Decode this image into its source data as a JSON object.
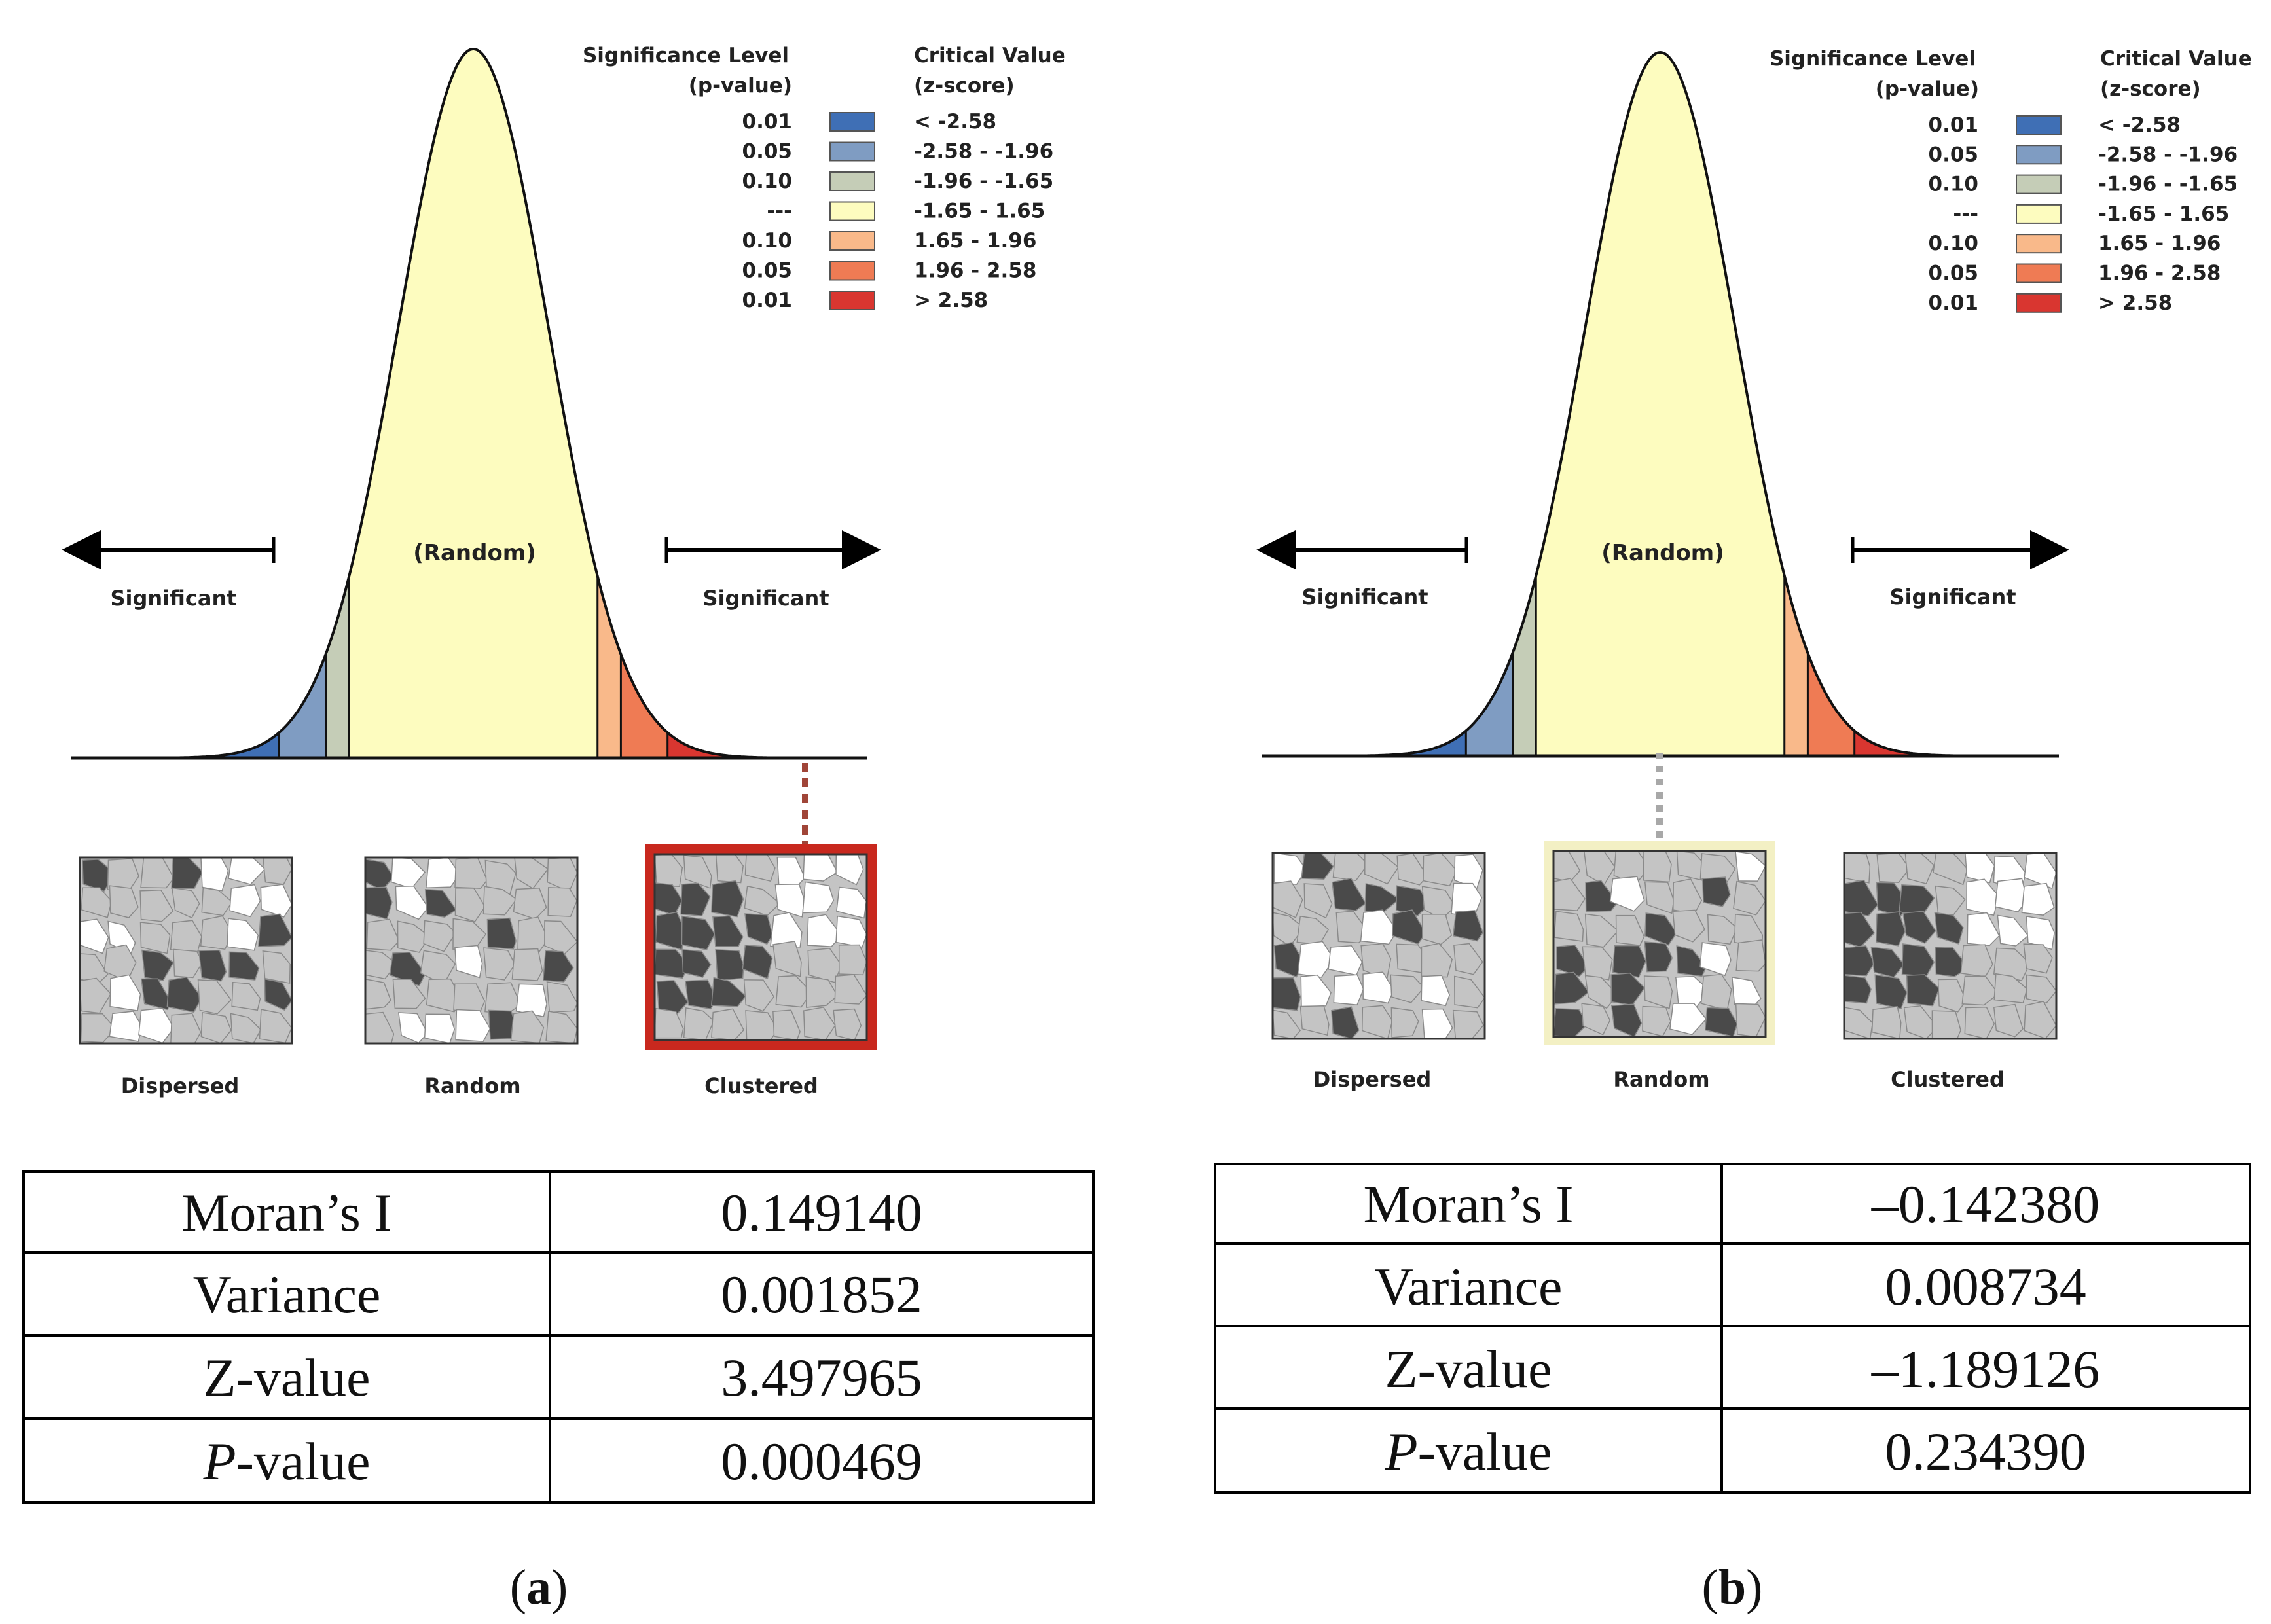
{
  "panels": [
    {
      "id": "a",
      "caption": "a",
      "legend": {
        "sig_header": [
          "Significance Level",
          "(p-value)"
        ],
        "crit_header": [
          "Critical Value",
          "(z-score)"
        ],
        "rows": [
          {
            "p": "0.01",
            "z": "< -2.58",
            "color": "#3f6fb5"
          },
          {
            "p": "0.05",
            "z": "-2.58 - -1.96",
            "color": "#7f9cc2"
          },
          {
            "p": "0.10",
            "z": "-1.96 - -1.65",
            "color": "#c5cdb7"
          },
          {
            "p": "---",
            "z": "-1.65 - 1.65",
            "color": "#fdfcbf"
          },
          {
            "p": "0.10",
            "z": "1.65 - 1.96",
            "color": "#f9b98a"
          },
          {
            "p": "0.05",
            "z": "1.96 - 2.58",
            "color": "#ef7b54"
          },
          {
            "p": "0.01",
            "z": "> 2.58",
            "color": "#d93630"
          }
        ]
      },
      "labels": {
        "random": "(Random)",
        "sig_left": "Significant",
        "sig_right": "Significant"
      },
      "selected": "Clustered",
      "maps": [
        "Dispersed",
        "Random",
        "Clustered"
      ],
      "table": [
        {
          "name": "Moran’s I",
          "value": "0.149140"
        },
        {
          "name": "Variance",
          "value": "0.001852"
        },
        {
          "name": "Z-value",
          "value": "3.497965"
        },
        {
          "name_italic": "P",
          "name_rest": "-value",
          "value": "0.000469"
        }
      ]
    },
    {
      "id": "b",
      "caption": "b",
      "legend": {
        "sig_header": [
          "Significance Level",
          "(p-value)"
        ],
        "crit_header": [
          "Critical Value",
          "(z-score)"
        ],
        "rows": [
          {
            "p": "0.01",
            "z": "< -2.58",
            "color": "#3f6fb5"
          },
          {
            "p": "0.05",
            "z": "-2.58 - -1.96",
            "color": "#7f9cc2"
          },
          {
            "p": "0.10",
            "z": "-1.96 - -1.65",
            "color": "#c5cdb7"
          },
          {
            "p": "---",
            "z": "-1.65 - 1.65",
            "color": "#fdfcbf"
          },
          {
            "p": "0.10",
            "z": "1.65 - 1.96",
            "color": "#f9b98a"
          },
          {
            "p": "0.05",
            "z": "1.96 - 2.58",
            "color": "#ef7b54"
          },
          {
            "p": "0.01",
            "z": "> 2.58",
            "color": "#d93630"
          }
        ]
      },
      "labels": {
        "random": "(Random)",
        "sig_left": "Significant",
        "sig_right": "Significant"
      },
      "selected": "Random",
      "maps": [
        "Dispersed",
        "Random",
        "Clustered"
      ],
      "table": [
        {
          "name": "Moran’s I",
          "value": "–0.142380"
        },
        {
          "name": "Variance",
          "value": "0.008734"
        },
        {
          "name": "Z-value",
          "value": "–1.189126"
        },
        {
          "name_italic": "P",
          "name_rest": "-value",
          "value": "0.234390"
        }
      ]
    }
  ],
  "colors": {
    "curve_fill": "#fdfcbf",
    "map_dark": "#4a4a4a",
    "map_light": "#c4c4c4",
    "map_white": "#ffffff",
    "clustered_frame": "#c8281e",
    "random_frame": "#f3f0c4",
    "dotted_red": "#a04538",
    "dotted_gray": "#a8a8a8"
  }
}
